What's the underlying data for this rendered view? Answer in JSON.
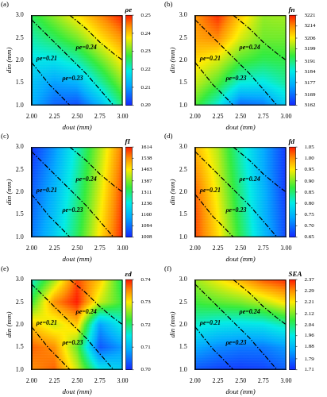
{
  "chart_data": [
    {
      "type": "heatmap",
      "title": "(a)",
      "x_label": "dout (mm)",
      "y_label": "din (mm)",
      "grid": false,
      "x": [
        2,
        2.25,
        2.5,
        2.75,
        3
      ],
      "y": [
        1,
        1.5,
        2,
        2.5,
        3
      ],
      "xlim": [
        2,
        3
      ],
      "xticks": [
        {
          "value": 2,
          "label": "2.00"
        },
        2.25,
        {
          "value": 2.5,
          "label": "2.50"
        },
        2.75,
        {
          "value": 3,
          "label": "3.00"
        }
      ],
      "ylim": [
        1,
        3
      ],
      "yticks": [
        {
          "value": 1,
          "label": "1.0"
        },
        1.5,
        {
          "value": 2,
          "label": "2.0"
        },
        2.5,
        {
          "value": 3,
          "label": "3.0"
        }
      ],
      "cells": [
        [
          0.212,
          0.205,
          0.203,
          0.212,
          0.225
        ],
        [
          0.214,
          0.21,
          0.212,
          0.222,
          0.232
        ],
        [
          0.218,
          0.218,
          0.222,
          0.23,
          0.238
        ],
        [
          0.222,
          0.226,
          0.231,
          0.238,
          0.244
        ],
        [
          0.226,
          0.232,
          0.238,
          0.244,
          0.25
        ]
      ],
      "colorbar": {
        "title": "ρe",
        "range": [
          0.2,
          0.25
        ],
        "ticks": [
          {
            "value": 0.2,
            "label": "0.20"
          },
          0.21,
          0.22,
          0.23,
          0.24,
          0.25
        ]
      },
      "contours": [
        {
          "label": "ρe=0.21",
          "line_style": "dashdot",
          "x": [
            2.0,
            2.1,
            2.2,
            2.3,
            2.42
          ],
          "y": [
            1.95,
            1.7,
            1.45,
            1.25,
            1.0
          ]
        },
        {
          "label": "ρe=0.23",
          "line_style": "dashdot",
          "x": [
            2.0,
            2.2,
            2.4,
            2.6,
            2.75,
            2.9
          ],
          "y": [
            2.9,
            2.5,
            2.1,
            1.7,
            1.35,
            1.0
          ]
        },
        {
          "label": "ρe=0.24",
          "line_style": "dashdot",
          "x": [
            2.42,
            2.6,
            2.75,
            2.9,
            3.0
          ],
          "y": [
            3.0,
            2.7,
            2.4,
            2.15,
            2.0
          ]
        }
      ]
    },
    {
      "type": "heatmap",
      "title": "(b)",
      "x_label": "dout (mm)",
      "y_label": "din (mm)",
      "grid": false,
      "x": [
        2,
        2.25,
        2.5,
        2.75,
        3
      ],
      "y": [
        1,
        1.5,
        2,
        2.5,
        3
      ],
      "xlim": [
        2,
        3
      ],
      "xticks": [
        {
          "value": 2,
          "label": "2.00"
        },
        2.25,
        {
          "value": 2.5,
          "label": "2.50"
        },
        2.75,
        {
          "value": 3,
          "label": "3.00"
        }
      ],
      "ylim": [
        1,
        3
      ],
      "yticks": [
        {
          "value": 1,
          "label": "1.0"
        },
        1.5,
        {
          "value": 2,
          "label": "2.0"
        },
        2.5,
        {
          "value": 3,
          "label": "3.0"
        }
      ],
      "cells": [
        [
          3196,
          3185,
          3168,
          3170,
          3180
        ],
        [
          3203,
          3196,
          3185,
          3184,
          3189
        ],
        [
          3208,
          3204,
          3196,
          3193,
          3194
        ],
        [
          3212,
          3214,
          3204,
          3198,
          3198
        ],
        [
          3213,
          3220,
          3209,
          3200,
          3201
        ]
      ],
      "colorbar": {
        "title": "fn",
        "range": [
          3162,
          3221
        ],
        "ticks": [
          3162,
          3169,
          3177,
          3184,
          3191,
          3199,
          3206,
          3214,
          3221
        ]
      },
      "contours": [
        {
          "label": "ρe=0.21",
          "line_style": "dashdot",
          "x": [
            2.0,
            2.1,
            2.2,
            2.3,
            2.42
          ],
          "y": [
            1.95,
            1.7,
            1.45,
            1.25,
            1.0
          ]
        },
        {
          "label": "ρe=0.23",
          "line_style": "dashdot",
          "x": [
            2.0,
            2.2,
            2.4,
            2.6,
            2.75,
            2.9
          ],
          "y": [
            2.9,
            2.5,
            2.1,
            1.7,
            1.35,
            1.0
          ]
        },
        {
          "label": "ρe=0.24",
          "line_style": "dashdot",
          "x": [
            2.42,
            2.6,
            2.75,
            2.9,
            3.0
          ],
          "y": [
            3.0,
            2.7,
            2.4,
            2.15,
            2.0
          ]
        }
      ]
    },
    {
      "type": "heatmap",
      "title": "(c)",
      "x_label": "dout (mm)",
      "y_label": "din (mm)",
      "grid": false,
      "x": [
        2,
        2.25,
        2.5,
        2.75,
        3
      ],
      "y": [
        1,
        1.5,
        2,
        2.5,
        3
      ],
      "xlim": [
        2,
        3
      ],
      "xticks": [
        {
          "value": 2,
          "label": "2.00"
        },
        2.25,
        {
          "value": 2.5,
          "label": "2.50"
        },
        2.75,
        {
          "value": 3,
          "label": "3.00"
        }
      ],
      "ylim": [
        1,
        3
      ],
      "yticks": [
        {
          "value": 1,
          "label": "1.0"
        },
        1.5,
        {
          "value": 2,
          "label": "2.0"
        },
        2.5,
        {
          "value": 3,
          "label": "3.0"
        }
      ],
      "cells": [
        [
          1090,
          1190,
          1320,
          1470,
          1610
        ],
        [
          1075,
          1175,
          1305,
          1455,
          1600
        ],
        [
          1060,
          1160,
          1290,
          1440,
          1590
        ],
        [
          1040,
          1140,
          1275,
          1425,
          1575
        ],
        [
          1015,
          1120,
          1260,
          1410,
          1560
        ]
      ],
      "colorbar": {
        "title": "fI",
        "range": [
          1008,
          1614
        ],
        "ticks": [
          1008,
          1084,
          1160,
          1236,
          1311,
          1387,
          1463,
          1538,
          1614
        ]
      },
      "contours": [
        {
          "label": "ρe=0.21",
          "line_style": "dashdot",
          "x": [
            2.0,
            2.1,
            2.2,
            2.3,
            2.42
          ],
          "y": [
            1.95,
            1.7,
            1.45,
            1.25,
            1.0
          ]
        },
        {
          "label": "ρe=0.23",
          "line_style": "dashdot",
          "x": [
            2.0,
            2.2,
            2.4,
            2.6,
            2.75,
            2.9
          ],
          "y": [
            2.9,
            2.5,
            2.1,
            1.7,
            1.35,
            1.0
          ]
        },
        {
          "label": "ρe=0.24",
          "line_style": "dashdot",
          "x": [
            2.42,
            2.6,
            2.75,
            2.9,
            3.0
          ],
          "y": [
            3.0,
            2.7,
            2.4,
            2.15,
            2.0
          ]
        }
      ]
    },
    {
      "type": "heatmap",
      "title": "(d)",
      "x_label": "dout (mm)",
      "y_label": "din (mm)",
      "grid": false,
      "x": [
        2,
        2.25,
        2.5,
        2.75,
        3
      ],
      "y": [
        1,
        1.5,
        2,
        2.5,
        3
      ],
      "xlim": [
        2,
        3
      ],
      "xticks": [
        {
          "value": 2,
          "label": "2.00"
        },
        2.25,
        {
          "value": 2.5,
          "label": "2.50"
        },
        2.75,
        {
          "value": 3,
          "label": "3.00"
        }
      ],
      "ylim": [
        1,
        3
      ],
      "yticks": [
        {
          "value": 1,
          "label": "1.0"
        },
        1.5,
        {
          "value": 2,
          "label": "2.0"
        },
        2.5,
        {
          "value": 3,
          "label": "3.0"
        }
      ],
      "cells": [
        [
          1.03,
          0.96,
          0.86,
          0.76,
          0.67
        ],
        [
          1.03,
          0.95,
          0.85,
          0.75,
          0.67
        ],
        [
          1.02,
          0.94,
          0.84,
          0.75,
          0.66
        ],
        [
          1.0,
          0.93,
          0.83,
          0.74,
          0.66
        ],
        [
          0.98,
          0.92,
          0.82,
          0.74,
          0.66
        ]
      ],
      "colorbar": {
        "title": "fd",
        "range": [
          0.65,
          1.05
        ],
        "ticks": [
          0.65,
          {
            "value": 0.7,
            "label": "0.70"
          },
          0.75,
          {
            "value": 0.8,
            "label": "0.80"
          },
          0.85,
          {
            "value": 0.9,
            "label": "0.90"
          },
          0.95,
          {
            "value": 1,
            "label": "1.00"
          },
          1.05
        ]
      },
      "contours": [
        {
          "label": "ρe=0.21",
          "line_style": "dashdot",
          "x": [
            2.0,
            2.1,
            2.2,
            2.3,
            2.42
          ],
          "y": [
            1.95,
            1.7,
            1.45,
            1.25,
            1.0
          ]
        },
        {
          "label": "ρe=0.23",
          "line_style": "dashdot",
          "x": [
            2.0,
            2.2,
            2.4,
            2.6,
            2.75,
            2.9
          ],
          "y": [
            2.9,
            2.5,
            2.1,
            1.7,
            1.35,
            1.0
          ]
        },
        {
          "label": "ρe=0.24",
          "line_style": "dashdot",
          "x": [
            2.42,
            2.6,
            2.75,
            2.9,
            3.0
          ],
          "y": [
            3.0,
            2.7,
            2.4,
            2.15,
            2.0
          ]
        }
      ]
    },
    {
      "type": "heatmap",
      "title": "(e)",
      "x_label": "dout (mm)",
      "y_label": "din (mm)",
      "grid": false,
      "x": [
        2,
        2.25,
        2.5,
        2.75,
        3
      ],
      "y": [
        1,
        1.5,
        2,
        2.5,
        3
      ],
      "xlim": [
        2,
        3
      ],
      "xticks": [
        {
          "value": 2,
          "label": "2.00"
        },
        2.25,
        {
          "value": 2.5,
          "label": "2.50"
        },
        2.75,
        {
          "value": 3,
          "label": "3.00"
        }
      ],
      "ylim": [
        1,
        3
      ],
      "yticks": [
        {
          "value": 1,
          "label": "1.0"
        },
        1.5,
        {
          "value": 2,
          "label": "2.0"
        },
        2.5,
        {
          "value": 3,
          "label": "3.0"
        }
      ],
      "cells": [
        [
          0.735,
          0.737,
          0.728,
          0.715,
          0.712
        ],
        [
          0.737,
          0.735,
          0.724,
          0.703,
          0.708
        ],
        [
          0.732,
          0.728,
          0.732,
          0.708,
          0.716
        ],
        [
          0.722,
          0.735,
          0.74,
          0.728,
          0.722
        ],
        [
          0.716,
          0.726,
          0.738,
          0.732,
          0.72
        ]
      ],
      "colorbar": {
        "title": "εd",
        "range": [
          0.7,
          0.74
        ],
        "ticks": [
          {
            "value": 0.7,
            "label": "0.70"
          },
          0.71,
          0.72,
          0.73,
          0.74
        ]
      },
      "contours": [
        {
          "label": "ρe=0.21",
          "line_style": "dashdot",
          "x": [
            2.0,
            2.1,
            2.2,
            2.3,
            2.42
          ],
          "y": [
            1.95,
            1.7,
            1.45,
            1.25,
            1.0
          ]
        },
        {
          "label": "ρe=0.23",
          "line_style": "dashdot",
          "x": [
            2.0,
            2.2,
            2.4,
            2.6,
            2.75,
            2.9
          ],
          "y": [
            2.9,
            2.5,
            2.1,
            1.7,
            1.35,
            1.0
          ]
        },
        {
          "label": "ρe=0.24",
          "line_style": "dashdot",
          "x": [
            2.42,
            2.6,
            2.75,
            2.9,
            3.0
          ],
          "y": [
            3.0,
            2.7,
            2.4,
            2.15,
            2.0
          ]
        }
      ]
    },
    {
      "type": "heatmap",
      "title": "(f)",
      "x_label": "dout (mm)",
      "y_label": "din (mm)",
      "grid": false,
      "x": [
        2,
        2.25,
        2.5,
        2.75,
        3
      ],
      "y": [
        1,
        1.5,
        2,
        2.5,
        3
      ],
      "xlim": [
        2,
        3
      ],
      "xticks": [
        {
          "value": 2,
          "label": "2.00"
        },
        2.25,
        {
          "value": 2.5,
          "label": "2.50"
        },
        2.75,
        {
          "value": 3,
          "label": "3.00"
        }
      ],
      "ylim": [
        1,
        3
      ],
      "yticks": [
        {
          "value": 1,
          "label": "1.0"
        },
        1.5,
        {
          "value": 2,
          "label": "2.0"
        },
        2.5,
        {
          "value": 3,
          "label": "3.0"
        }
      ],
      "cells": [
        [
          1.76,
          1.74,
          1.73,
          1.74,
          1.77
        ],
        [
          1.86,
          1.82,
          1.8,
          1.8,
          1.84
        ],
        [
          1.98,
          1.95,
          1.94,
          1.95,
          2.0
        ],
        [
          2.08,
          2.1,
          2.12,
          2.16,
          2.22
        ],
        [
          2.14,
          2.2,
          2.26,
          2.33,
          2.36
        ]
      ],
      "colorbar": {
        "title": "SEA",
        "range": [
          1.71,
          2.37
        ],
        "ticks": [
          1.71,
          1.79,
          1.88,
          1.96,
          2.04,
          2.12,
          2.21,
          2.29,
          2.37
        ]
      },
      "contours": [
        {
          "label": "ρe=0.21",
          "line_style": "dashdot",
          "x": [
            2.0,
            2.1,
            2.2,
            2.3,
            2.42
          ],
          "y": [
            1.95,
            1.7,
            1.45,
            1.25,
            1.0
          ]
        },
        {
          "label": "ρe=0.23",
          "line_style": "dashdot",
          "x": [
            2.0,
            2.2,
            2.4,
            2.6,
            2.75,
            2.9
          ],
          "y": [
            2.9,
            2.5,
            2.1,
            1.7,
            1.35,
            1.0
          ]
        },
        {
          "label": "ρe=0.24",
          "line_style": "dashdot",
          "x": [
            2.42,
            2.6,
            2.75,
            2.9,
            3.0
          ],
          "y": [
            3.0,
            2.7,
            2.4,
            2.15,
            2.0
          ]
        }
      ]
    }
  ]
}
